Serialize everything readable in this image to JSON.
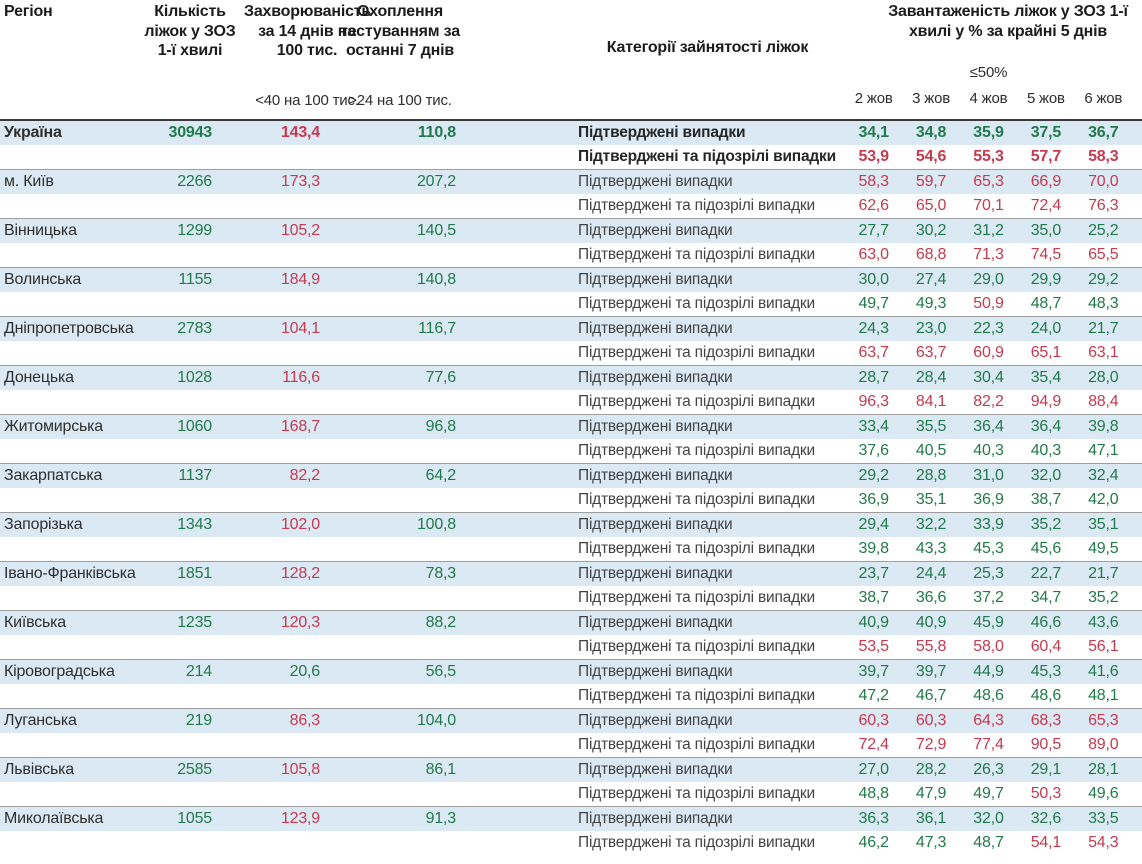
{
  "table": {
    "headers": {
      "region": "Регіон",
      "beds": "Кількість ліжок у ЗОЗ 1-ї хвилі",
      "morbidity": "Захворюваність за 14 днів на 100 тис.",
      "testing": "Охоплення тестуванням за останні 7 днів",
      "category": "Категорії зайнятості ліжок",
      "occupancy": "Завантаженість ліжок у ЗОЗ 1-ї хвилі у % за крайні 5 днів",
      "morbidity_threshold": "<40 на 100 тис.",
      "testing_threshold": ">24 на 100 тис.",
      "occupancy_threshold": "≤50%",
      "dates": [
        "2 жов",
        "3 жов",
        "4 жов",
        "5 жов",
        "6 жов"
      ]
    },
    "row_labels": {
      "confirmed": "Підтверджені випадки",
      "confirmed_suspected": "Підтверджені та підозрілі випадки"
    },
    "colors": {
      "green": "#217a4a",
      "red": "#c43a4f",
      "row_blue": "#dbe9f5",
      "separator": "#9e9e9e",
      "header_line": "#3a3a3a"
    },
    "thresholds": {
      "morbidity_green_below": 40,
      "occupancy_red_above": 50
    },
    "regions": [
      {
        "name": "Україна",
        "bold": true,
        "beds": "30943",
        "morbidity": "143,4",
        "testing": "110,8",
        "confirmed": [
          "34,1",
          "34,8",
          "35,9",
          "37,5",
          "36,7"
        ],
        "confirmed_suspected": [
          "53,9",
          "54,6",
          "55,3",
          "57,7",
          "58,3"
        ]
      },
      {
        "name": "м. Київ",
        "bold": false,
        "beds": "2266",
        "morbidity": "173,3",
        "testing": "207,2",
        "confirmed": [
          "58,3",
          "59,7",
          "65,3",
          "66,9",
          "70,0"
        ],
        "confirmed_suspected": [
          "62,6",
          "65,0",
          "70,1",
          "72,4",
          "76,3"
        ]
      },
      {
        "name": "Вінницька",
        "bold": false,
        "beds": "1299",
        "morbidity": "105,2",
        "testing": "140,5",
        "confirmed": [
          "27,7",
          "30,2",
          "31,2",
          "35,0",
          "25,2"
        ],
        "confirmed_suspected": [
          "63,0",
          "68,8",
          "71,3",
          "74,5",
          "65,5"
        ]
      },
      {
        "name": "Волинська",
        "bold": false,
        "beds": "1155",
        "morbidity": "184,9",
        "testing": "140,8",
        "confirmed": [
          "30,0",
          "27,4",
          "29,0",
          "29,9",
          "29,2"
        ],
        "confirmed_suspected": [
          "49,7",
          "49,3",
          "50,9",
          "48,7",
          "48,3"
        ]
      },
      {
        "name": "Дніпропетровська",
        "bold": false,
        "beds": "2783",
        "morbidity": "104,1",
        "testing": "116,7",
        "confirmed": [
          "24,3",
          "23,0",
          "22,3",
          "24,0",
          "21,7"
        ],
        "confirmed_suspected": [
          "63,7",
          "63,7",
          "60,9",
          "65,1",
          "63,1"
        ]
      },
      {
        "name": "Донецька",
        "bold": false,
        "beds": "1028",
        "morbidity": "116,6",
        "testing": "77,6",
        "confirmed": [
          "28,7",
          "28,4",
          "30,4",
          "35,4",
          "28,0"
        ],
        "confirmed_suspected": [
          "96,3",
          "84,1",
          "82,2",
          "94,9",
          "88,4"
        ]
      },
      {
        "name": "Житомирська",
        "bold": false,
        "beds": "1060",
        "morbidity": "168,7",
        "testing": "96,8",
        "confirmed": [
          "33,4",
          "35,5",
          "36,4",
          "36,4",
          "39,8"
        ],
        "confirmed_suspected": [
          "37,6",
          "40,5",
          "40,3",
          "40,3",
          "47,1"
        ]
      },
      {
        "name": "Закарпатська",
        "bold": false,
        "beds": "1137",
        "morbidity": "82,2",
        "testing": "64,2",
        "confirmed": [
          "29,2",
          "28,8",
          "31,0",
          "32,0",
          "32,4"
        ],
        "confirmed_suspected": [
          "36,9",
          "35,1",
          "36,9",
          "38,7",
          "42,0"
        ]
      },
      {
        "name": "Запорізька",
        "bold": false,
        "beds": "1343",
        "morbidity": "102,0",
        "testing": "100,8",
        "confirmed": [
          "29,4",
          "32,2",
          "33,9",
          "35,2",
          "35,1"
        ],
        "confirmed_suspected": [
          "39,8",
          "43,3",
          "45,3",
          "45,6",
          "49,5"
        ]
      },
      {
        "name": "Івано-Франківська",
        "bold": false,
        "beds": "1851",
        "morbidity": "128,2",
        "testing": "78,3",
        "confirmed": [
          "23,7",
          "24,4",
          "25,3",
          "22,7",
          "21,7"
        ],
        "confirmed_suspected": [
          "38,7",
          "36,6",
          "37,2",
          "34,7",
          "35,2"
        ]
      },
      {
        "name": "Київська",
        "bold": false,
        "beds": "1235",
        "morbidity": "120,3",
        "testing": "88,2",
        "confirmed": [
          "40,9",
          "40,9",
          "45,9",
          "46,6",
          "43,6"
        ],
        "confirmed_suspected": [
          "53,5",
          "55,8",
          "58,0",
          "60,4",
          "56,1"
        ]
      },
      {
        "name": "Кіровоградська",
        "bold": false,
        "beds": "214",
        "morbidity": "20,6",
        "testing": "56,5",
        "confirmed": [
          "39,7",
          "39,7",
          "44,9",
          "45,3",
          "41,6"
        ],
        "confirmed_suspected": [
          "47,2",
          "46,7",
          "48,6",
          "48,6",
          "48,1"
        ]
      },
      {
        "name": "Луганська",
        "bold": false,
        "beds": "219",
        "morbidity": "86,3",
        "testing": "104,0",
        "confirmed": [
          "60,3",
          "60,3",
          "64,3",
          "68,3",
          "65,3"
        ],
        "confirmed_suspected": [
          "72,4",
          "72,9",
          "77,4",
          "90,5",
          "89,0"
        ]
      },
      {
        "name": "Львівська",
        "bold": false,
        "beds": "2585",
        "morbidity": "105,8",
        "testing": "86,1",
        "confirmed": [
          "27,0",
          "28,2",
          "26,3",
          "29,1",
          "28,1"
        ],
        "confirmed_suspected": [
          "48,8",
          "47,9",
          "49,7",
          "50,3",
          "49,6"
        ]
      },
      {
        "name": "Миколаївська",
        "bold": false,
        "beds": "1055",
        "morbidity": "123,9",
        "testing": "91,3",
        "confirmed": [
          "36,3",
          "36,1",
          "32,0",
          "32,6",
          "33,5"
        ],
        "confirmed_suspected": [
          "46,2",
          "47,3",
          "48,7",
          "54,1",
          "54,3"
        ]
      }
    ]
  }
}
